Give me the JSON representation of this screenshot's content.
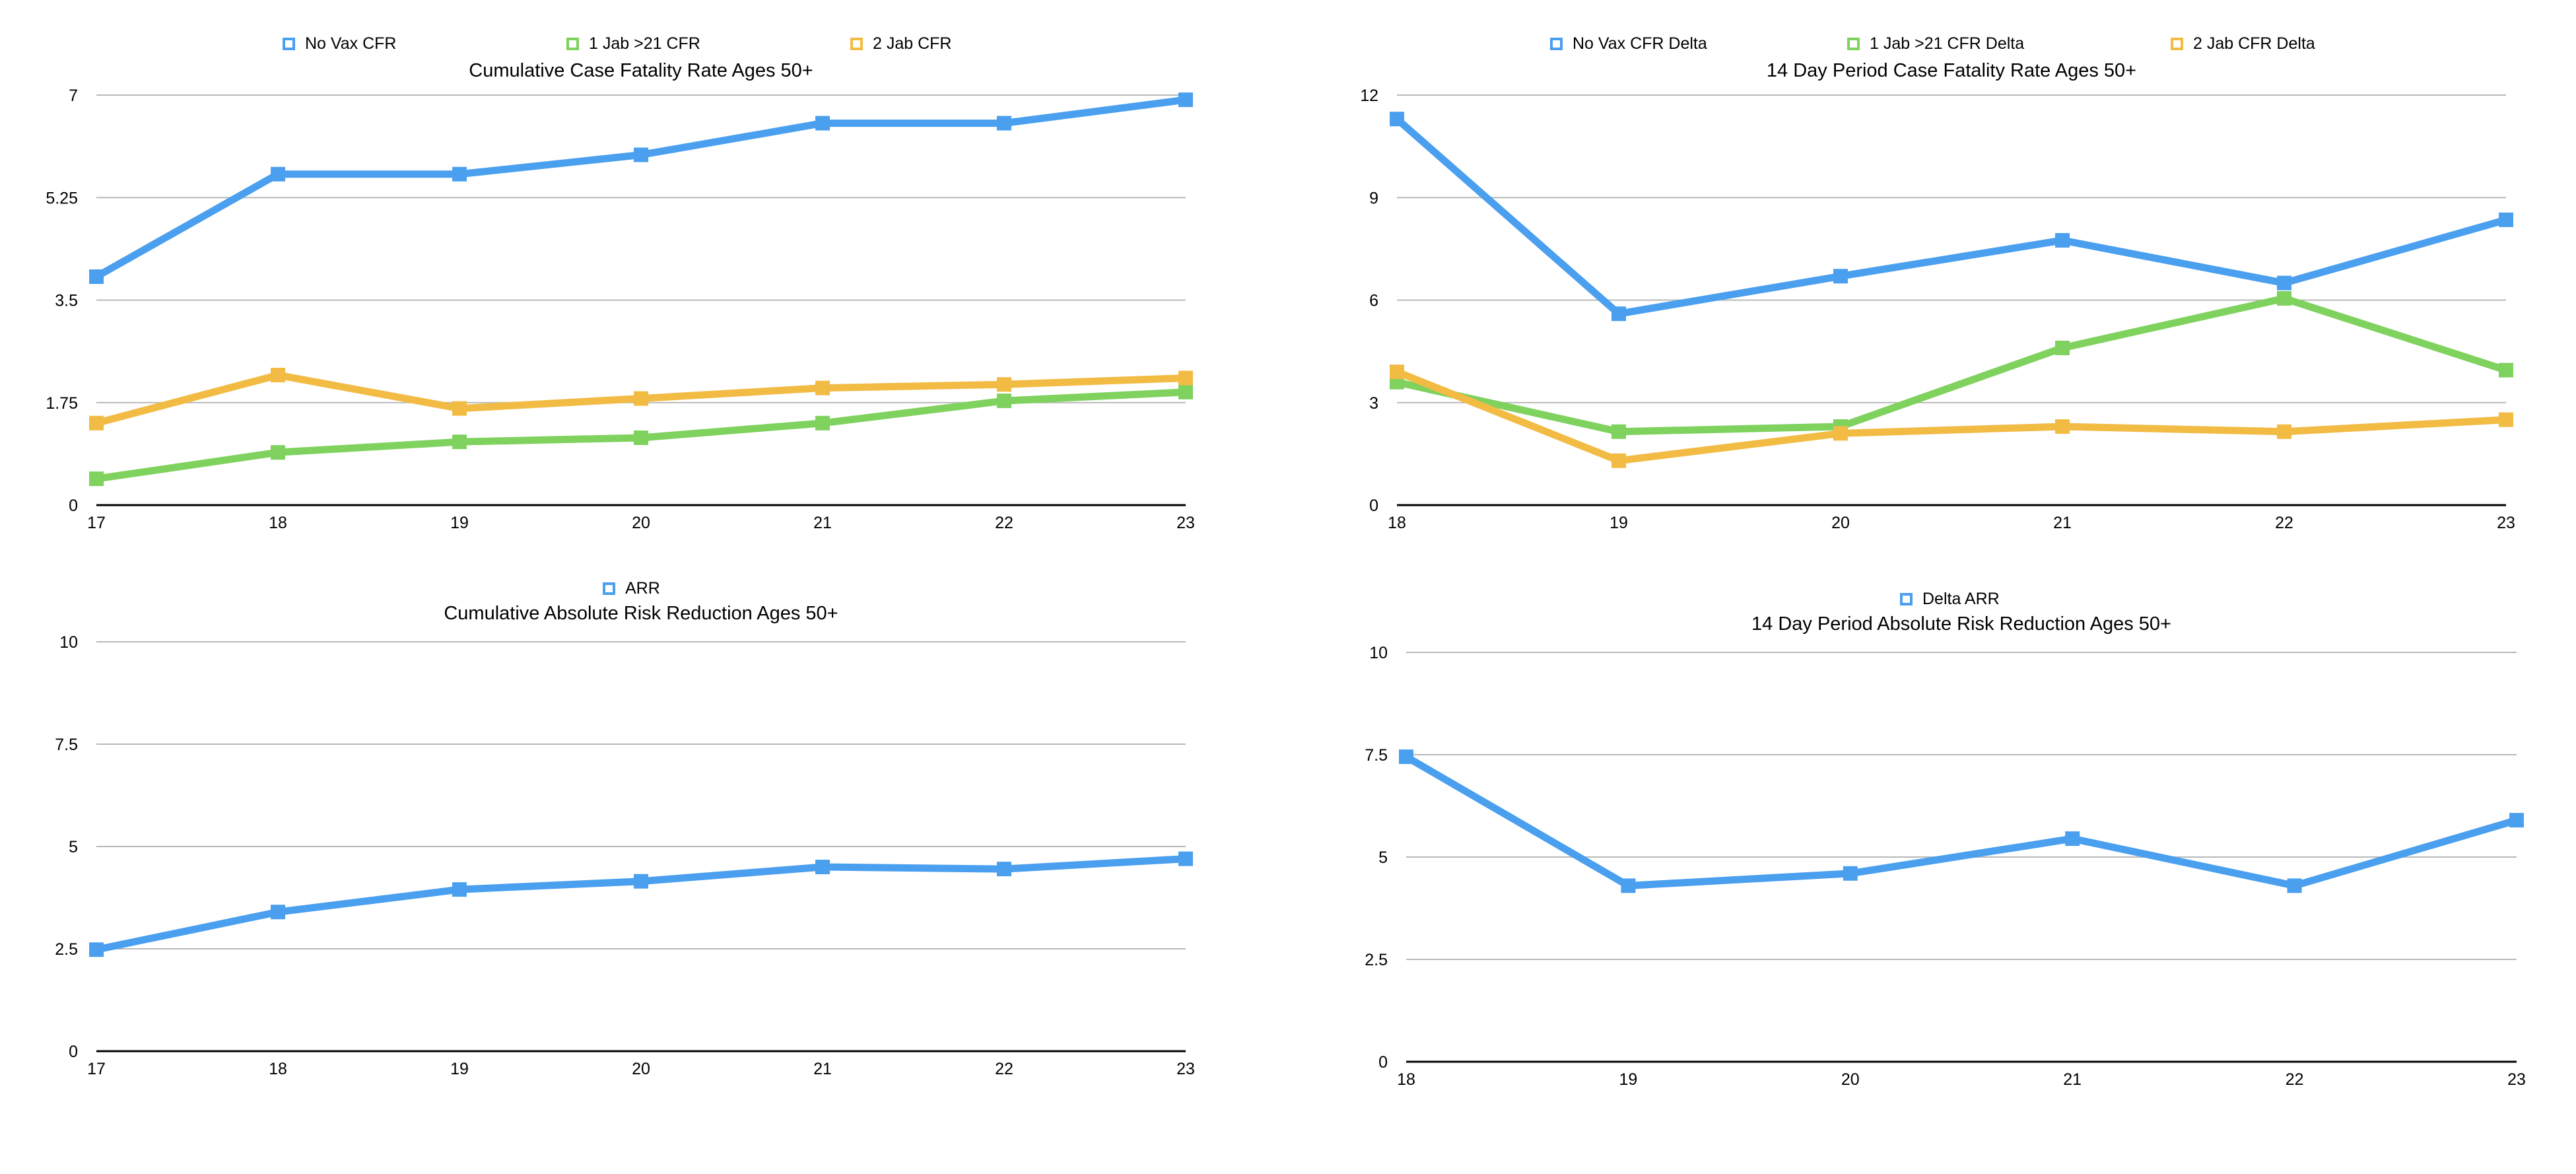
{
  "chart_data": [
    {
      "type": "line",
      "title": "Cumulative Case Fatality Rate Ages 50+",
      "xlabel": "",
      "ylabel": "",
      "x": [
        17,
        18,
        19,
        20,
        21,
        22,
        23
      ],
      "x_tick_labels": [
        "17",
        "18",
        "19",
        "20",
        "21",
        "22",
        "23"
      ],
      "ylim": [
        0,
        7
      ],
      "y_ticks": [
        0,
        1.75,
        3.5,
        5.25,
        7
      ],
      "y_tick_labels": [
        "0",
        "1.75",
        "3.5",
        "5.25",
        "7"
      ],
      "grid": true,
      "legend_position": "top",
      "series": [
        {
          "name": "No Vax CFR",
          "color": "#4a9fef",
          "values": [
            3.9,
            5.65,
            5.65,
            5.98,
            6.52,
            6.52,
            6.92
          ]
        },
        {
          "name": "1 Jab >21 CFR",
          "color": "#7ed25d",
          "values": [
            0.45,
            0.9,
            1.08,
            1.15,
            1.4,
            1.78,
            1.93
          ]
        },
        {
          "name": "2 Jab CFR",
          "color": "#f2bb43",
          "values": [
            1.4,
            2.22,
            1.65,
            1.82,
            2.0,
            2.06,
            2.17
          ]
        }
      ]
    },
    {
      "type": "line",
      "title": "14 Day Period Case Fatality Rate Ages 50+",
      "xlabel": "",
      "ylabel": "",
      "x": [
        18,
        19,
        20,
        21,
        22,
        23
      ],
      "x_tick_labels": [
        "18",
        "19",
        "20",
        "21",
        "22",
        "23"
      ],
      "ylim": [
        0,
        12
      ],
      "y_ticks": [
        0,
        3,
        6,
        9,
        12
      ],
      "y_tick_labels": [
        "0",
        "3",
        "6",
        "9",
        "12"
      ],
      "grid": true,
      "legend_position": "top",
      "series": [
        {
          "name": "No Vax CFR Delta",
          "color": "#4a9fef",
          "values": [
            11.3,
            5.6,
            6.7,
            7.75,
            6.5,
            8.35
          ]
        },
        {
          "name": "1 Jab >21 CFR Delta",
          "color": "#7ed25d",
          "values": [
            3.6,
            2.15,
            2.3,
            4.6,
            6.05,
            3.95
          ]
        },
        {
          "name": "2 Jab CFR Delta",
          "color": "#f2bb43",
          "values": [
            3.9,
            1.3,
            2.1,
            2.3,
            2.15,
            2.5
          ]
        }
      ]
    },
    {
      "type": "line",
      "title": "Cumulative Absolute Risk Reduction Ages 50+",
      "xlabel": "",
      "ylabel": "",
      "x": [
        17,
        18,
        19,
        20,
        21,
        22,
        23
      ],
      "x_tick_labels": [
        "17",
        "18",
        "19",
        "20",
        "21",
        "22",
        "23"
      ],
      "ylim": [
        0,
        10
      ],
      "y_ticks": [
        0,
        2.5,
        5,
        7.5,
        10
      ],
      "y_tick_labels": [
        "0",
        "2.5",
        "5",
        "7.5",
        "10"
      ],
      "grid": true,
      "legend_position": "top",
      "series": [
        {
          "name": "ARR",
          "color": "#4a9fef",
          "values": [
            2.48,
            3.4,
            3.95,
            4.15,
            4.5,
            4.45,
            4.7
          ]
        }
      ]
    },
    {
      "type": "line",
      "title": "14 Day Period Absolute Risk Reduction Ages 50+",
      "xlabel": "",
      "ylabel": "",
      "x": [
        18,
        19,
        20,
        21,
        22,
        23
      ],
      "x_tick_labels": [
        "18",
        "19",
        "20",
        "21",
        "22",
        "23"
      ],
      "ylim": [
        0,
        10
      ],
      "y_ticks": [
        0,
        2.5,
        5,
        7.5,
        10
      ],
      "y_tick_labels": [
        "0",
        "2.5",
        "5",
        "7.5",
        "10"
      ],
      "grid": true,
      "legend_position": "top",
      "series": [
        {
          "name": "Delta ARR",
          "color": "#4a9fef",
          "values": [
            7.45,
            4.3,
            4.6,
            5.45,
            4.3,
            5.9
          ]
        }
      ]
    }
  ]
}
